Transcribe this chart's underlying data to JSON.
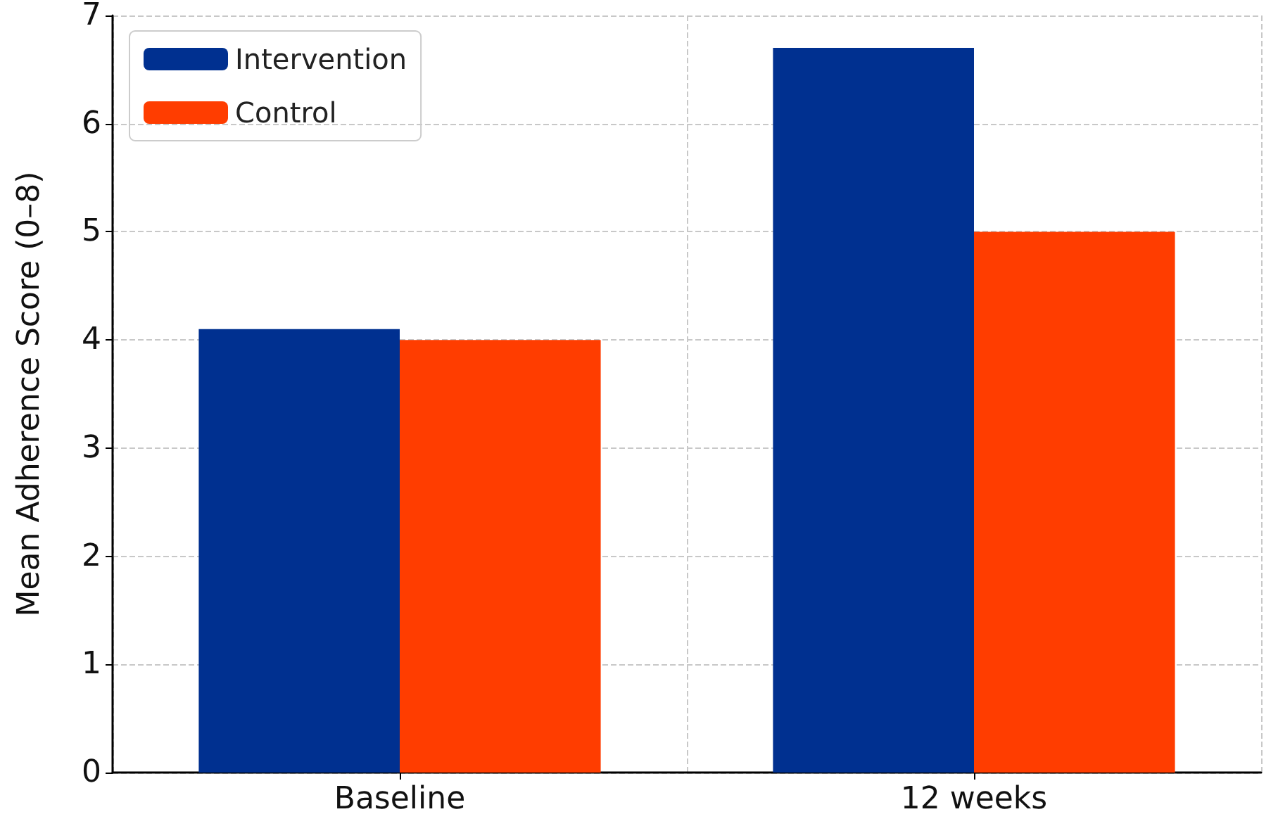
{
  "chart_data": {
    "type": "bar",
    "ylabel": "Mean Adherence Score (0–8)",
    "categories": [
      "Baseline",
      "12 weeks"
    ],
    "series": [
      {
        "name": "Intervention",
        "color": "#003090",
        "values": [
          4.1,
          6.7
        ]
      },
      {
        "name": "Control",
        "color": "#ff3d00",
        "values": [
          4.0,
          5.0
        ]
      }
    ],
    "ylim": [
      0,
      7
    ],
    "yticks": [
      0,
      1,
      2,
      3,
      4,
      5,
      6,
      7
    ],
    "grid": true,
    "legend": "top left"
  }
}
